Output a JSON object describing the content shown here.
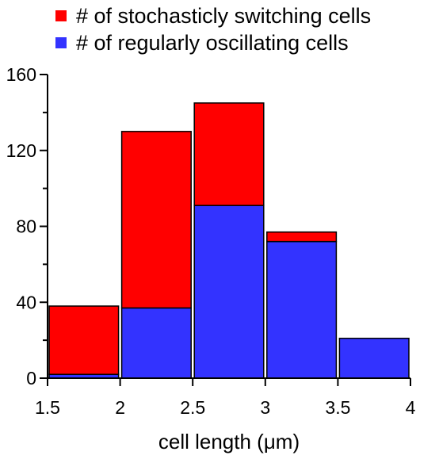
{
  "chart_data": {
    "type": "bar",
    "stacked": true,
    "histogram": true,
    "bin_edges": [
      1.5,
      2,
      2.5,
      3,
      3.5,
      4
    ],
    "series": [
      {
        "name": "# of regularly oscillating cells",
        "color": "#3333ff",
        "values": [
          2,
          37,
          91,
          72,
          21
        ]
      },
      {
        "name": "# of stochasticly switching cells",
        "color": "#ff0000",
        "values": [
          36,
          93,
          54,
          5,
          0
        ]
      }
    ],
    "legend_order": [
      1,
      0
    ],
    "xlabel": "cell length (μm)",
    "ylabel": "",
    "xlim": [
      1.5,
      4
    ],
    "ylim": [
      0,
      160
    ],
    "x_ticks": [
      "1.5",
      "2",
      "2.5",
      "3",
      "3.5",
      "4"
    ],
    "y_ticks": [
      "0",
      "40",
      "80",
      "120",
      "160"
    ],
    "grid": false,
    "legend_position": "top-left"
  }
}
